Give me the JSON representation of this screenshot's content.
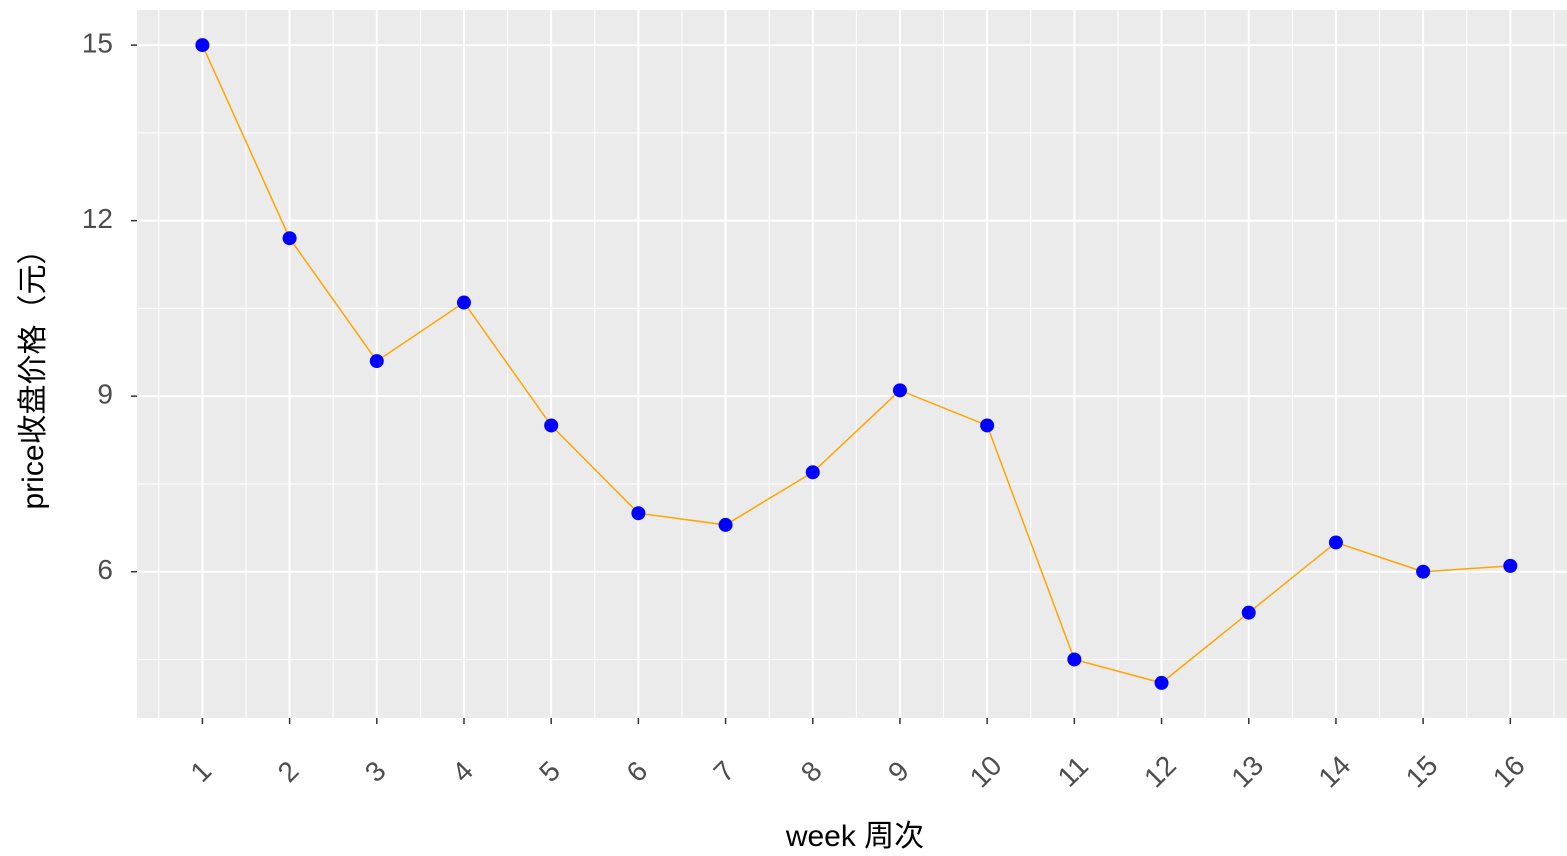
{
  "chart_data": {
    "type": "line",
    "x_label": "week 周次",
    "y_label": "price收盘价格（元）",
    "x": [
      1,
      2,
      3,
      4,
      5,
      6,
      7,
      8,
      9,
      10,
      11,
      12,
      13,
      14,
      15,
      16
    ],
    "series": [
      {
        "values": [
          15.0,
          11.7,
          9.6,
          10.6,
          8.5,
          7.0,
          6.8,
          7.7,
          9.1,
          8.5,
          4.5,
          4.1,
          5.3,
          6.5,
          6.0,
          6.1
        ],
        "color": "#FFA500",
        "marker_color": "#0000FF"
      }
    ],
    "xlim": [
      0.25,
      16.65
    ],
    "xticks": [
      1,
      2,
      3,
      4,
      5,
      6,
      7,
      8,
      9,
      10,
      11,
      12,
      13,
      14,
      15,
      16
    ],
    "ylim": [
      3.5,
      15.6
    ],
    "yticks": [
      6,
      9,
      12,
      15
    ],
    "grid": true
  }
}
